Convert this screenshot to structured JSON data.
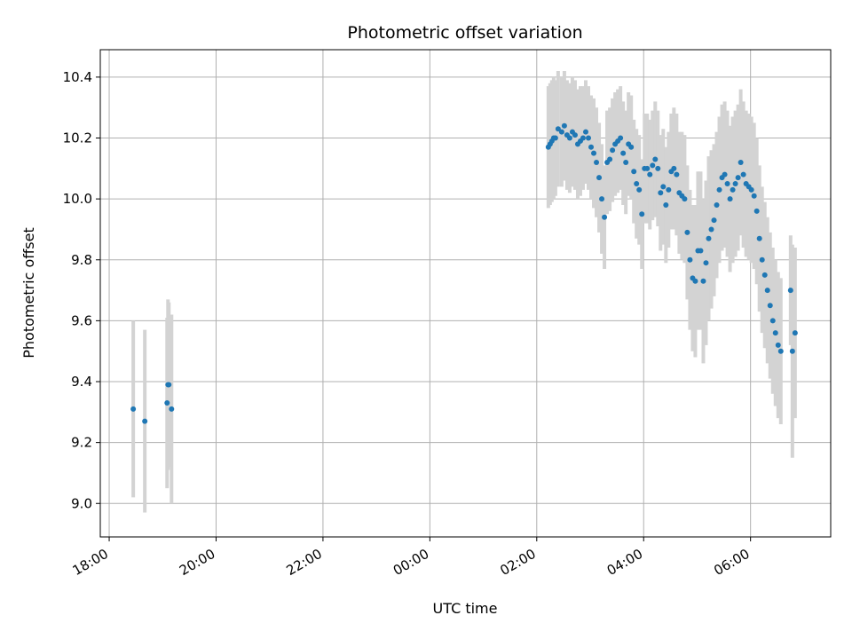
{
  "chart_data": {
    "type": "scatter",
    "title": "Photometric offset variation",
    "xlabel": "UTC time",
    "ylabel": "Photometric offset",
    "x_tick_labels": [
      "18:00",
      "20:00",
      "22:00",
      "00:00",
      "02:00",
      "04:00",
      "06:00"
    ],
    "y_tick_labels": [
      "9.0",
      "9.2",
      "9.4",
      "9.6",
      "9.8",
      "10.0",
      "10.2",
      "10.4"
    ],
    "xlim": [
      "17:50",
      "07:30"
    ],
    "ylim": [
      8.89,
      10.49
    ],
    "grid": true,
    "colors": {
      "point": "#1f77b4",
      "errorbar": "#d3d3d3",
      "grid": "#b0b0b0"
    },
    "series": [
      {
        "x": [
          "18:27",
          "18:40",
          "19:05",
          "19:06",
          "19:07",
          "19:10",
          "02:13",
          "02:15",
          "02:17",
          "02:19",
          "02:21",
          "02:24",
          "02:28",
          "02:31",
          "02:34",
          "02:37",
          "02:40",
          "02:43",
          "02:46",
          "02:49",
          "02:52",
          "02:55",
          "02:58",
          "03:01",
          "03:04",
          "03:07",
          "03:10",
          "03:13",
          "03:16",
          "03:19",
          "03:22",
          "03:25",
          "03:28",
          "03:31",
          "03:34",
          "03:37",
          "03:40",
          "03:43",
          "03:46",
          "03:49",
          "03:52",
          "03:55",
          "03:58",
          "04:01",
          "04:04",
          "04:07",
          "04:10",
          "04:13",
          "04:16",
          "04:19",
          "04:22",
          "04:25",
          "04:28",
          "04:31",
          "04:34",
          "04:37",
          "04:40",
          "04:43",
          "04:46",
          "04:49",
          "04:52",
          "04:55",
          "04:58",
          "05:01",
          "05:04",
          "05:07",
          "05:10",
          "05:13",
          "05:16",
          "05:19",
          "05:22",
          "05:25",
          "05:28",
          "05:31",
          "05:34",
          "05:37",
          "05:40",
          "05:43",
          "05:46",
          "05:49",
          "05:52",
          "05:55",
          "05:58",
          "06:01",
          "06:04",
          "06:07",
          "06:10",
          "06:13",
          "06:16",
          "06:19",
          "06:22",
          "06:25",
          "06:28",
          "06:31",
          "06:34",
          "06:45",
          "06:47",
          "06:50"
        ],
        "y": [
          9.31,
          9.27,
          9.33,
          9.39,
          9.39,
          9.31,
          10.17,
          10.18,
          10.19,
          10.2,
          10.2,
          10.23,
          10.22,
          10.24,
          10.21,
          10.2,
          10.22,
          10.21,
          10.18,
          10.19,
          10.2,
          10.22,
          10.2,
          10.17,
          10.15,
          10.12,
          10.07,
          10.0,
          9.94,
          10.12,
          10.13,
          10.16,
          10.18,
          10.19,
          10.2,
          10.15,
          10.12,
          10.18,
          10.17,
          10.09,
          10.05,
          10.03,
          9.95,
          10.1,
          10.1,
          10.08,
          10.11,
          10.13,
          10.1,
          10.02,
          10.04,
          9.98,
          10.03,
          10.09,
          10.1,
          10.08,
          10.02,
          10.01,
          10.0,
          9.89,
          9.8,
          9.74,
          9.73,
          9.83,
          9.83,
          9.73,
          9.79,
          9.87,
          9.9,
          9.93,
          9.98,
          10.03,
          10.07,
          10.08,
          10.05,
          10.0,
          10.03,
          10.05,
          10.07,
          10.12,
          10.08,
          10.05,
          10.04,
          10.03,
          10.01,
          9.96,
          9.87,
          9.8,
          9.75,
          9.7,
          9.65,
          9.6,
          9.56,
          9.52,
          9.5,
          9.7,
          9.5,
          9.56
        ],
        "yerr": [
          0.29,
          0.3,
          0.28,
          0.28,
          0.27,
          0.31,
          0.2,
          0.2,
          0.2,
          0.2,
          0.19,
          0.19,
          0.18,
          0.18,
          0.18,
          0.18,
          0.18,
          0.18,
          0.18,
          0.18,
          0.17,
          0.17,
          0.17,
          0.17,
          0.18,
          0.18,
          0.18,
          0.18,
          0.17,
          0.17,
          0.17,
          0.17,
          0.17,
          0.17,
          0.17,
          0.17,
          0.17,
          0.17,
          0.17,
          0.17,
          0.18,
          0.18,
          0.18,
          0.18,
          0.18,
          0.18,
          0.18,
          0.19,
          0.19,
          0.19,
          0.19,
          0.19,
          0.19,
          0.19,
          0.2,
          0.2,
          0.2,
          0.21,
          0.21,
          0.22,
          0.23,
          0.24,
          0.25,
          0.26,
          0.26,
          0.27,
          0.27,
          0.27,
          0.26,
          0.25,
          0.24,
          0.24,
          0.24,
          0.24,
          0.24,
          0.24,
          0.24,
          0.24,
          0.24,
          0.24,
          0.24,
          0.24,
          0.24,
          0.24,
          0.24,
          0.24,
          0.24,
          0.24,
          0.24,
          0.24,
          0.24,
          0.24,
          0.24,
          0.24,
          0.24,
          0.18,
          0.35,
          0.28
        ]
      }
    ]
  }
}
